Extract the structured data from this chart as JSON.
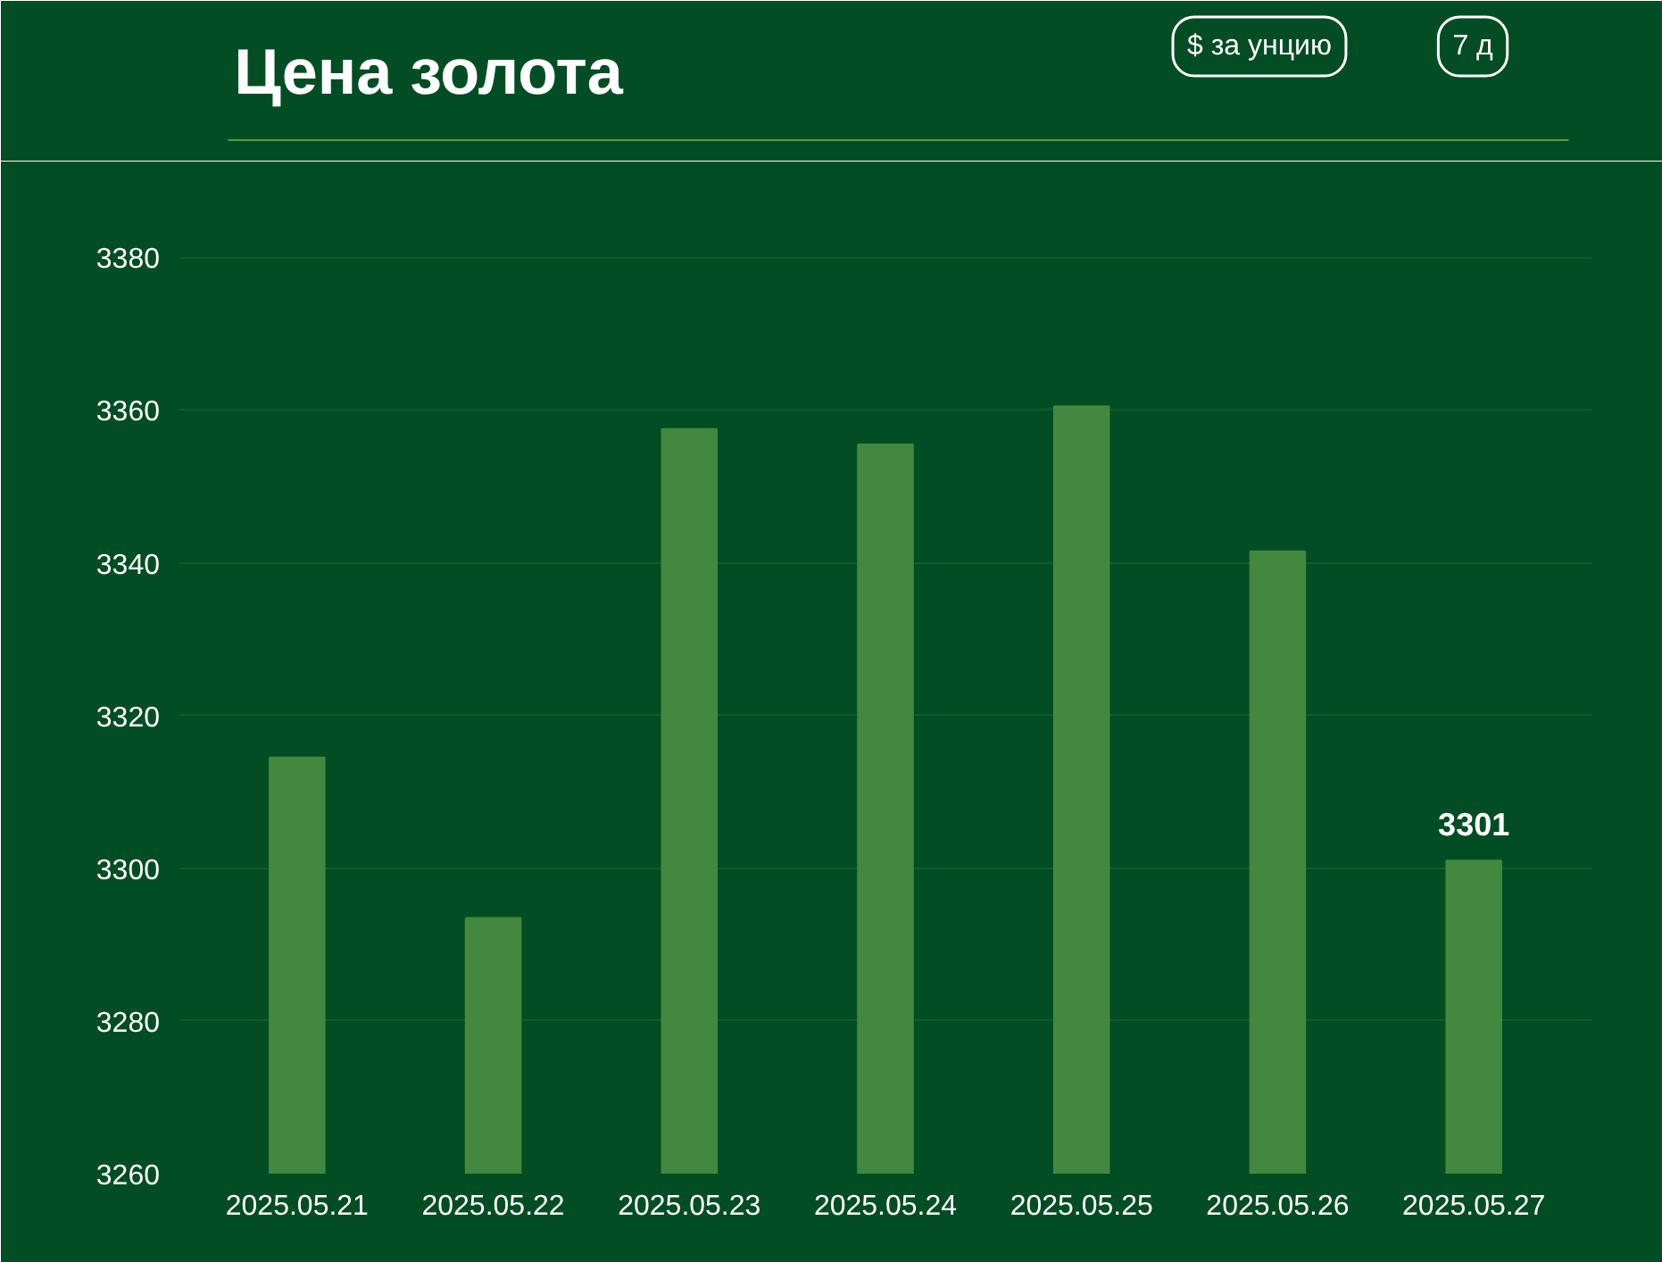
{
  "chart_data": {
    "type": "bar",
    "title": "Цена золота",
    "annotations": [
      "$ за унцию",
      "7 д"
    ],
    "categories": [
      "2025.05.21",
      "2025.05.22",
      "2025.05.23",
      "2025.05.24",
      "2025.05.25",
      "2025.05.26",
      "2025.05.27"
    ],
    "values": [
      3314.5,
      3293.5,
      3357.5,
      3355.5,
      3360.5,
      3341.5,
      3301
    ],
    "value_labels": [
      null,
      null,
      null,
      null,
      null,
      null,
      "3301"
    ],
    "color": "#43883f",
    "ylim": [
      3260,
      3386
    ],
    "yticks": [
      3260,
      3280,
      3300,
      3320,
      3340,
      3360,
      3380
    ],
    "grid": "y"
  }
}
